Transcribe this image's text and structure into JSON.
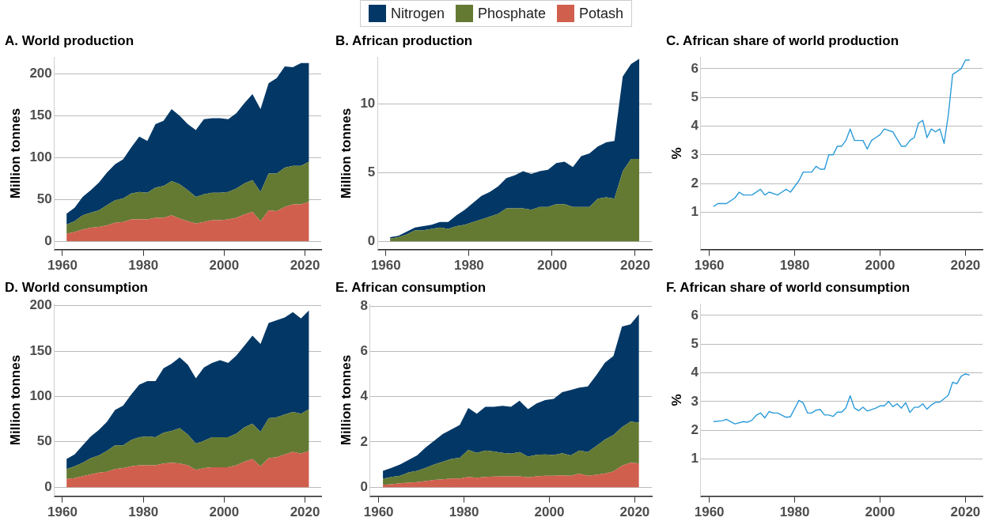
{
  "chart_data": [
    {
      "type": "area",
      "title": "A. World production",
      "ylabel": "Million tonnes",
      "stacked": true,
      "legend": "top",
      "grid": "y",
      "x": [
        1961,
        1963,
        1965,
        1967,
        1969,
        1971,
        1973,
        1975,
        1977,
        1979,
        1981,
        1983,
        1985,
        1987,
        1989,
        1991,
        1993,
        1995,
        1997,
        1999,
        2001,
        2003,
        2005,
        2007,
        2009,
        2011,
        2013,
        2015,
        2017,
        2019,
        2021
      ],
      "xlim": [
        1958,
        2024
      ],
      "xticks": [
        1960,
        1980,
        2000,
        2020
      ],
      "ylim": [
        -10,
        220
      ],
      "yticks": [
        0,
        50,
        100,
        150,
        200
      ],
      "series": [
        {
          "name": "Potash",
          "color": "#d05f4e",
          "values": [
            9,
            11,
            14,
            16,
            17,
            19,
            22,
            23,
            26,
            26,
            26,
            28,
            28,
            31,
            27,
            24,
            21,
            23,
            25,
            25,
            26,
            28,
            32,
            35,
            24,
            37,
            36,
            41,
            44,
            44,
            47
          ]
        },
        {
          "name": "Phosphate",
          "color": "#647a33",
          "values": [
            11,
            13,
            17,
            18,
            20,
            24,
            27,
            28,
            31,
            33,
            32,
            36,
            38,
            41,
            41,
            37,
            32,
            33,
            33,
            33,
            33,
            35,
            37,
            38,
            35,
            44,
            45,
            47,
            46,
            46,
            48
          ]
        },
        {
          "name": "Nitrogen",
          "color": "#033866",
          "values": [
            13,
            16,
            22,
            27,
            33,
            39,
            43,
            47,
            55,
            66,
            62,
            76,
            78,
            86,
            82,
            79,
            80,
            90,
            89,
            89,
            87,
            90,
            96,
            103,
            99,
            108,
            114,
            121,
            118,
            123,
            118
          ]
        }
      ]
    },
    {
      "type": "area",
      "title": "B. African production",
      "ylabel": "Million tonnes",
      "stacked": true,
      "grid": "y",
      "x": [
        1961,
        1963,
        1965,
        1967,
        1969,
        1971,
        1973,
        1975,
        1977,
        1979,
        1981,
        1983,
        1985,
        1987,
        1989,
        1991,
        1993,
        1995,
        1997,
        1999,
        2001,
        2003,
        2005,
        2007,
        2009,
        2011,
        2013,
        2015,
        2017,
        2019,
        2021
      ],
      "xlim": [
        1958,
        2024
      ],
      "xticks": [
        1960,
        1980,
        2000,
        2020
      ],
      "ylim": [
        -0.6,
        13.4
      ],
      "yticks": [
        0,
        5,
        10
      ],
      "series": [
        {
          "color": "#647a33",
          "values": [
            0.2,
            0.3,
            0.5,
            0.8,
            0.8,
            0.9,
            1.0,
            0.9,
            1.1,
            1.2,
            1.4,
            1.6,
            1.8,
            2.0,
            2.4,
            2.4,
            2.4,
            2.3,
            2.5,
            2.5,
            2.7,
            2.7,
            2.5,
            2.5,
            2.5,
            3.1,
            3.2,
            3.1,
            5.1,
            6.0,
            6.0
          ]
        },
        {
          "color": "#033866",
          "values": [
            0.1,
            0.1,
            0.2,
            0.2,
            0.3,
            0.3,
            0.4,
            0.5,
            0.8,
            1.1,
            1.4,
            1.7,
            1.8,
            2.0,
            2.2,
            2.4,
            2.7,
            2.6,
            2.6,
            2.7,
            3.0,
            3.1,
            2.9,
            3.7,
            3.9,
            3.8,
            4.0,
            4.2,
            6.9,
            6.9,
            7.3
          ]
        }
      ]
    },
    {
      "type": "line",
      "title": "C. African share of world production",
      "ylabel": "%",
      "grid": "y",
      "xlim": [
        1958,
        2024
      ],
      "xticks": [
        1960,
        1980,
        2000,
        2020
      ],
      "ylim": [
        -0.3,
        6.4
      ],
      "yticks": [
        1,
        2,
        3,
        4,
        5,
        6
      ],
      "series": [
        {
          "color": "#2b9bd8",
          "x": [
            1961,
            1962,
            1964,
            1966,
            1967,
            1968,
            1970,
            1972,
            1973,
            1974,
            1976,
            1977,
            1978,
            1979,
            1981,
            1982,
            1984,
            1985,
            1986,
            1987,
            1988,
            1989,
            1990,
            1991,
            1992,
            1993,
            1994,
            1996,
            1997,
            1998,
            1999,
            2000,
            2001,
            2003,
            2005,
            2006,
            2007,
            2008,
            2009,
            2010,
            2011,
            2012,
            2013,
            2014,
            2015,
            2016,
            2017,
            2018,
            2019,
            2020,
            2021
          ],
          "values": [
            1.2,
            1.3,
            1.3,
            1.5,
            1.7,
            1.6,
            1.6,
            1.8,
            1.6,
            1.7,
            1.6,
            1.7,
            1.8,
            1.7,
            2.1,
            2.4,
            2.4,
            2.6,
            2.5,
            2.5,
            3.0,
            3.0,
            3.3,
            3.3,
            3.5,
            3.9,
            3.5,
            3.5,
            3.2,
            3.5,
            3.6,
            3.7,
            3.9,
            3.8,
            3.3,
            3.3,
            3.5,
            3.6,
            4.1,
            4.2,
            3.6,
            3.9,
            3.8,
            3.9,
            3.4,
            4.4,
            5.8,
            5.9,
            6.0,
            6.3,
            6.3
          ]
        }
      ]
    },
    {
      "type": "area",
      "title": "D. World consumption",
      "ylabel": "Million tonnes",
      "stacked": true,
      "grid": "y",
      "x": [
        1961,
        1963,
        1965,
        1967,
        1969,
        1971,
        1973,
        1975,
        1977,
        1979,
        1981,
        1983,
        1985,
        1987,
        1989,
        1991,
        1993,
        1995,
        1997,
        1999,
        2001,
        2003,
        2005,
        2007,
        2009,
        2011,
        2013,
        2015,
        2017,
        2019,
        2021
      ],
      "xlim": [
        1958,
        2024
      ],
      "xticks": [
        1960,
        1980,
        2000,
        2020
      ],
      "ylim": [
        -10,
        202
      ],
      "yticks": [
        0,
        50,
        100,
        150,
        200
      ],
      "series": [
        {
          "color": "#d05f4e",
          "values": [
            9,
            10,
            12,
            14,
            16,
            17,
            20,
            21,
            23,
            24,
            24,
            24,
            26,
            27,
            26,
            24,
            19,
            21,
            22,
            22,
            22,
            24,
            28,
            31,
            23,
            32,
            33,
            36,
            39,
            37,
            40
          ]
        },
        {
          "color": "#647a33",
          "values": [
            11,
            13,
            15,
            18,
            19,
            23,
            26,
            25,
            29,
            31,
            32,
            31,
            34,
            35,
            39,
            34,
            29,
            30,
            33,
            33,
            33,
            35,
            38,
            39,
            38,
            44,
            44,
            44,
            44,
            44,
            46
          ]
        },
        {
          "color": "#033866",
          "values": [
            11,
            13,
            19,
            24,
            28,
            32,
            39,
            44,
            50,
            58,
            61,
            62,
            71,
            74,
            78,
            77,
            72,
            81,
            82,
            85,
            82,
            86,
            90,
            97,
            97,
            105,
            107,
            107,
            110,
            105,
            109
          ]
        }
      ]
    },
    {
      "type": "area",
      "title": "E. African consumption",
      "ylabel": "Million tonnes",
      "stacked": true,
      "grid": "y",
      "x": [
        1961,
        1963,
        1965,
        1967,
        1969,
        1971,
        1973,
        1975,
        1977,
        1979,
        1981,
        1983,
        1985,
        1987,
        1989,
        1991,
        1993,
        1995,
        1997,
        1999,
        2001,
        2003,
        2005,
        2007,
        2009,
        2011,
        2013,
        2015,
        2017,
        2019,
        2021
      ],
      "xlim": [
        1958,
        2024
      ],
      "xticks": [
        1960,
        1980,
        2000,
        2020
      ],
      "ylim": [
        -0.4,
        8.1
      ],
      "yticks": [
        0,
        2,
        4,
        6,
        8
      ],
      "series": [
        {
          "color": "#d05f4e",
          "values": [
            0.1,
            0.13,
            0.17,
            0.2,
            0.22,
            0.27,
            0.32,
            0.35,
            0.38,
            0.38,
            0.45,
            0.42,
            0.45,
            0.47,
            0.48,
            0.48,
            0.48,
            0.43,
            0.48,
            0.5,
            0.5,
            0.52,
            0.5,
            0.6,
            0.5,
            0.55,
            0.6,
            0.7,
            0.95,
            1.08,
            1.05
          ]
        },
        {
          "color": "#647a33",
          "values": [
            0.27,
            0.32,
            0.33,
            0.45,
            0.5,
            0.58,
            0.68,
            0.77,
            0.87,
            0.92,
            1.2,
            1.1,
            1.17,
            1.11,
            1.04,
            1.0,
            1.07,
            0.92,
            0.95,
            0.95,
            0.92,
            0.98,
            0.9,
            1.02,
            1.05,
            1.27,
            1.5,
            1.6,
            1.7,
            1.82,
            1.8
          ]
        },
        {
          "color": "#033866",
          "values": [
            0.35,
            0.4,
            0.5,
            0.55,
            0.68,
            0.9,
            1.05,
            1.23,
            1.3,
            1.45,
            1.85,
            1.73,
            1.93,
            1.97,
            2.08,
            2.07,
            2.27,
            2.1,
            2.27,
            2.4,
            2.48,
            2.7,
            2.9,
            2.78,
            2.9,
            3.13,
            3.4,
            3.5,
            4.45,
            4.3,
            4.8
          ]
        }
      ]
    },
    {
      "type": "line",
      "title": "F. African share of world consumption",
      "ylabel": "%",
      "grid": "y",
      "xlim": [
        1958,
        2024
      ],
      "xticks": [
        1960,
        1980,
        2000,
        2020
      ],
      "ylim": [
        -0.3,
        6.4
      ],
      "yticks": [
        1,
        2,
        3,
        4,
        5,
        6
      ],
      "series": [
        {
          "color": "#2b9bd8",
          "x": [
            1961,
            1963,
            1964,
            1966,
            1968,
            1969,
            1970,
            1971,
            1972,
            1973,
            1974,
            1975,
            1976,
            1978,
            1979,
            1981,
            1982,
            1983,
            1984,
            1985,
            1986,
            1987,
            1988,
            1989,
            1990,
            1991,
            1992,
            1993,
            1994,
            1995,
            1996,
            1997,
            1999,
            2000,
            2001,
            2002,
            2003,
            2004,
            2005,
            2006,
            2007,
            2008,
            2009,
            2010,
            2011,
            2012,
            2013,
            2014,
            2015,
            2016,
            2017,
            2018,
            2019,
            2020,
            2021
          ],
          "values": [
            2.3,
            2.33,
            2.38,
            2.22,
            2.3,
            2.28,
            2.35,
            2.52,
            2.6,
            2.43,
            2.65,
            2.6,
            2.6,
            2.45,
            2.47,
            3.04,
            2.95,
            2.6,
            2.6,
            2.7,
            2.72,
            2.53,
            2.53,
            2.48,
            2.63,
            2.63,
            2.78,
            3.2,
            2.77,
            2.68,
            2.8,
            2.67,
            2.77,
            2.85,
            2.85,
            3.0,
            2.82,
            2.92,
            2.77,
            2.96,
            2.62,
            2.8,
            2.8,
            2.92,
            2.73,
            2.88,
            2.97,
            2.98,
            3.1,
            3.22,
            3.67,
            3.62,
            3.88,
            3.96,
            3.92
          ]
        }
      ]
    }
  ]
}
